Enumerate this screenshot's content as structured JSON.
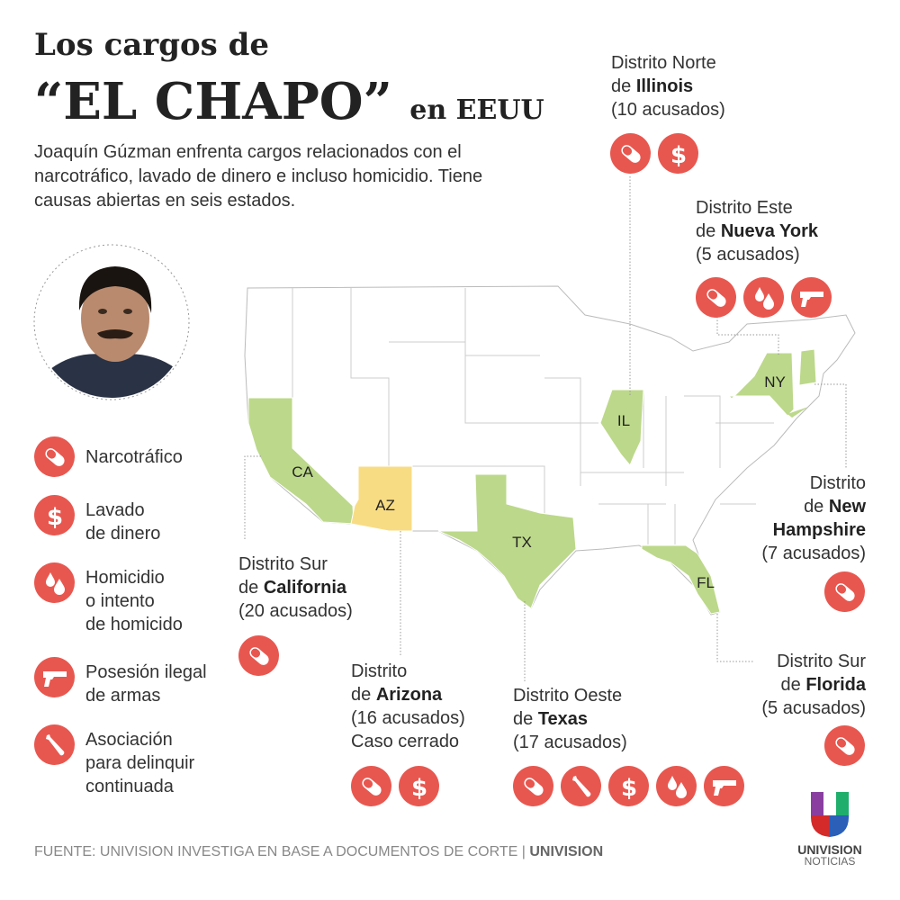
{
  "title": {
    "line1": "Los cargos de",
    "line2": "“EL CHAPO”",
    "line2_suffix": "en EEUU"
  },
  "intro": "Joaquín Gúzman enfrenta cargos relacionados con el narcotráfico, lavado de dinero e incluso homicidio. Tiene causas abiertas en seis estados.",
  "colors": {
    "icon_red": "#e8574f",
    "charged_state": "#bcd88a",
    "closed_case_state": "#f8dc84",
    "border": "#bbbbbb"
  },
  "legend": [
    {
      "icon": "pill-icon",
      "lines": [
        "Narcotráfico"
      ]
    },
    {
      "icon": "dollar-icon",
      "lines": [
        "Lavado",
        "de dinero"
      ]
    },
    {
      "icon": "drops-icon",
      "lines": [
        "Homicidio",
        "o intento",
        "de homicido"
      ]
    },
    {
      "icon": "gun-icon",
      "lines": [
        "Posesión ilegal",
        "de armas"
      ]
    },
    {
      "icon": "bat-icon",
      "lines": [
        "Asociación",
        "para delinquir",
        "continuada"
      ]
    }
  ],
  "states": [
    {
      "code": "CA",
      "status": "charged"
    },
    {
      "code": "AZ",
      "status": "closed"
    },
    {
      "code": "TX",
      "status": "charged"
    },
    {
      "code": "IL",
      "status": "charged"
    },
    {
      "code": "NY",
      "status": "charged"
    },
    {
      "code": "NH",
      "status": "charged"
    },
    {
      "code": "FL",
      "status": "charged"
    }
  ],
  "districts": {
    "illinois": {
      "pre": "Distrito Norte",
      "de": "de ",
      "name": "Illinois",
      "count": "(10 acusados)",
      "charges": [
        "pill-icon",
        "dollar-icon"
      ]
    },
    "nuevayork": {
      "pre": "Distrito Este",
      "de": "de ",
      "name": "Nueva York",
      "count": "(5 acusados)",
      "charges": [
        "pill-icon",
        "drops-icon",
        "gun-icon"
      ]
    },
    "newhampshire": {
      "pre": "Distrito",
      "de": "de ",
      "name": "New",
      "name2": "Hampshire",
      "count": "(7 acusados)",
      "charges": [
        "pill-icon"
      ]
    },
    "california": {
      "pre": "Distrito Sur",
      "de": "de ",
      "name": "California",
      "count": "(20 acusados)",
      "charges": [
        "pill-icon"
      ]
    },
    "arizona": {
      "pre": "Distrito",
      "de": "de ",
      "name": "Arizona",
      "count": "(16 acusados)",
      "note": "Caso cerrado",
      "charges": [
        "pill-icon",
        "dollar-icon"
      ]
    },
    "texas": {
      "pre": "Distrito Oeste",
      "de": "de ",
      "name": "Texas",
      "count": "(17 acusados)",
      "charges": [
        "pill-icon",
        "bat-icon",
        "dollar-icon",
        "drops-icon",
        "gun-icon"
      ]
    },
    "florida": {
      "pre": "Distrito Sur",
      "de": "de ",
      "name": "Florida",
      "count": "(5 acusados)",
      "charges": [
        "pill-icon"
      ]
    }
  },
  "footer": {
    "source": "FUENTE: UNIVISION INVESTIGA EN BASE A DOCUMENTOS DE CORTE | ",
    "brand": "UNIVISION"
  },
  "logo": {
    "line1": "UNIVISION",
    "line2": "NOTICIAS"
  }
}
